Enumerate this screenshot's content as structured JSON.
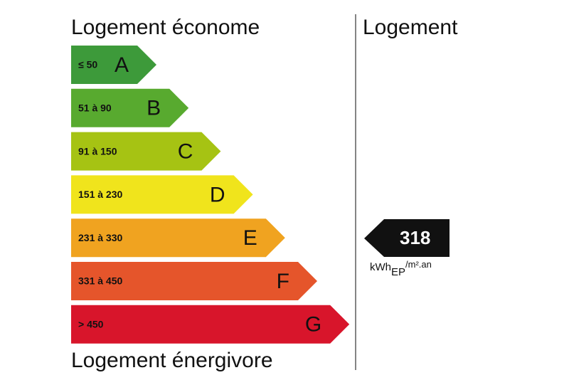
{
  "header": {
    "top": "Logement économe",
    "bottom": "Logement énergivore",
    "column": "Logement"
  },
  "classes": [
    {
      "range": "≤ 50",
      "letter": "A",
      "color": "#3d9a3a"
    },
    {
      "range": "51 à 90",
      "letter": "B",
      "color": "#58aa2f"
    },
    {
      "range": "91 à 150",
      "letter": "C",
      "color": "#a6c313"
    },
    {
      "range": "151 à 230",
      "letter": "D",
      "color": "#f0e41c"
    },
    {
      "range": "231 à 330",
      "letter": "E",
      "color": "#f0a320"
    },
    {
      "range": "331 à 450",
      "letter": "F",
      "color": "#e5552b"
    },
    {
      "range": "> 450",
      "letter": "G",
      "color": "#d8152b"
    }
  ],
  "indicator": {
    "value": "318",
    "unit": {
      "main": "kWh",
      "sub": "EP",
      "rest": "/m².an"
    }
  }
}
